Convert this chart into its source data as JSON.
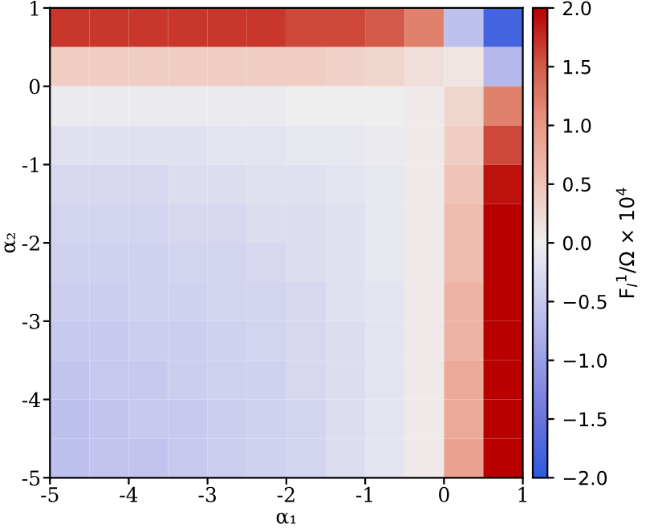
{
  "chart_data": {
    "type": "heatmap",
    "xlabel": "α₁",
    "ylabel": "α₂",
    "clabel": "F$_{l}$$^{1}$/Ω × 10$^{4}$",
    "x": [
      -4.75,
      -4.25,
      -3.75,
      -3.25,
      -2.75,
      -2.25,
      -1.75,
      -1.25,
      -0.75,
      -0.25,
      0.25,
      0.75
    ],
    "y": [
      0.75,
      0.25,
      -0.25,
      -0.75,
      -1.25,
      -1.75,
      -2.25,
      -2.75,
      -3.25,
      -3.75,
      -4.25,
      -4.75
    ],
    "xlim": [
      -5,
      1
    ],
    "ylim": [
      -5,
      1
    ],
    "xticks": [
      -5,
      -4,
      -3,
      -2,
      -1,
      0,
      1
    ],
    "yticks": [
      -5,
      -4,
      -3,
      -2,
      -1,
      0,
      1
    ],
    "clim": [
      -2,
      2
    ],
    "cticks": [
      {
        "value": -2,
        "label": "−2.0"
      },
      {
        "value": -1.5,
        "label": "−1.5"
      },
      {
        "value": -1,
        "label": "−1.0"
      },
      {
        "value": -0.5,
        "label": "−0.5"
      },
      {
        "value": 0,
        "label": "0.0"
      },
      {
        "value": 0.5,
        "label": "0.5"
      },
      {
        "value": 1,
        "label": "1.0"
      },
      {
        "value": 1.5,
        "label": "1.5"
      },
      {
        "value": 2,
        "label": "2.0"
      }
    ],
    "colors": [
      "#2b5be0",
      "#6c74dc",
      "#9a9ee6",
      "#c8c9ef",
      "#efefef",
      "#f0c4b8",
      "#e89a86",
      "#d45c4a",
      "#b80000"
    ],
    "cells": [
      [
        1.7,
        1.7,
        1.7,
        1.7,
        1.7,
        1.7,
        1.6,
        1.6,
        1.5,
        1.2,
        -0.6,
        -1.8
      ],
      [
        0.4,
        0.4,
        0.4,
        0.4,
        0.4,
        0.4,
        0.4,
        0.35,
        0.3,
        0.2,
        0.1,
        -0.7
      ],
      [
        -0.05,
        -0.05,
        -0.05,
        -0.05,
        -0.05,
        -0.05,
        0,
        0,
        0,
        0.05,
        0.3,
        1.2
      ],
      [
        -0.2,
        -0.2,
        -0.2,
        -0.2,
        -0.15,
        -0.15,
        -0.1,
        -0.1,
        -0.05,
        0.05,
        0.4,
        1.6
      ],
      [
        -0.3,
        -0.3,
        -0.3,
        -0.25,
        -0.25,
        -0.2,
        -0.2,
        -0.15,
        -0.1,
        0.05,
        0.5,
        1.9
      ],
      [
        -0.35,
        -0.35,
        -0.35,
        -0.3,
        -0.3,
        -0.25,
        -0.25,
        -0.2,
        -0.1,
        0.05,
        0.6,
        2.0
      ],
      [
        -0.4,
        -0.4,
        -0.4,
        -0.35,
        -0.35,
        -0.3,
        -0.25,
        -0.2,
        -0.1,
        0.05,
        0.6,
        2.0
      ],
      [
        -0.45,
        -0.45,
        -0.4,
        -0.4,
        -0.35,
        -0.35,
        -0.3,
        -0.2,
        -0.15,
        0.05,
        0.7,
        2.0
      ],
      [
        -0.5,
        -0.5,
        -0.45,
        -0.45,
        -0.4,
        -0.35,
        -0.3,
        -0.25,
        -0.15,
        0.05,
        0.7,
        2.0
      ],
      [
        -0.55,
        -0.5,
        -0.5,
        -0.45,
        -0.4,
        -0.4,
        -0.3,
        -0.25,
        -0.15,
        0.05,
        0.8,
        2.0
      ],
      [
        -0.6,
        -0.55,
        -0.5,
        -0.5,
        -0.45,
        -0.4,
        -0.35,
        -0.25,
        -0.15,
        0.05,
        0.8,
        2.0
      ],
      [
        -0.6,
        -0.55,
        -0.55,
        -0.5,
        -0.45,
        -0.4,
        -0.35,
        -0.25,
        -0.15,
        0.05,
        0.9,
        2.0
      ]
    ]
  }
}
